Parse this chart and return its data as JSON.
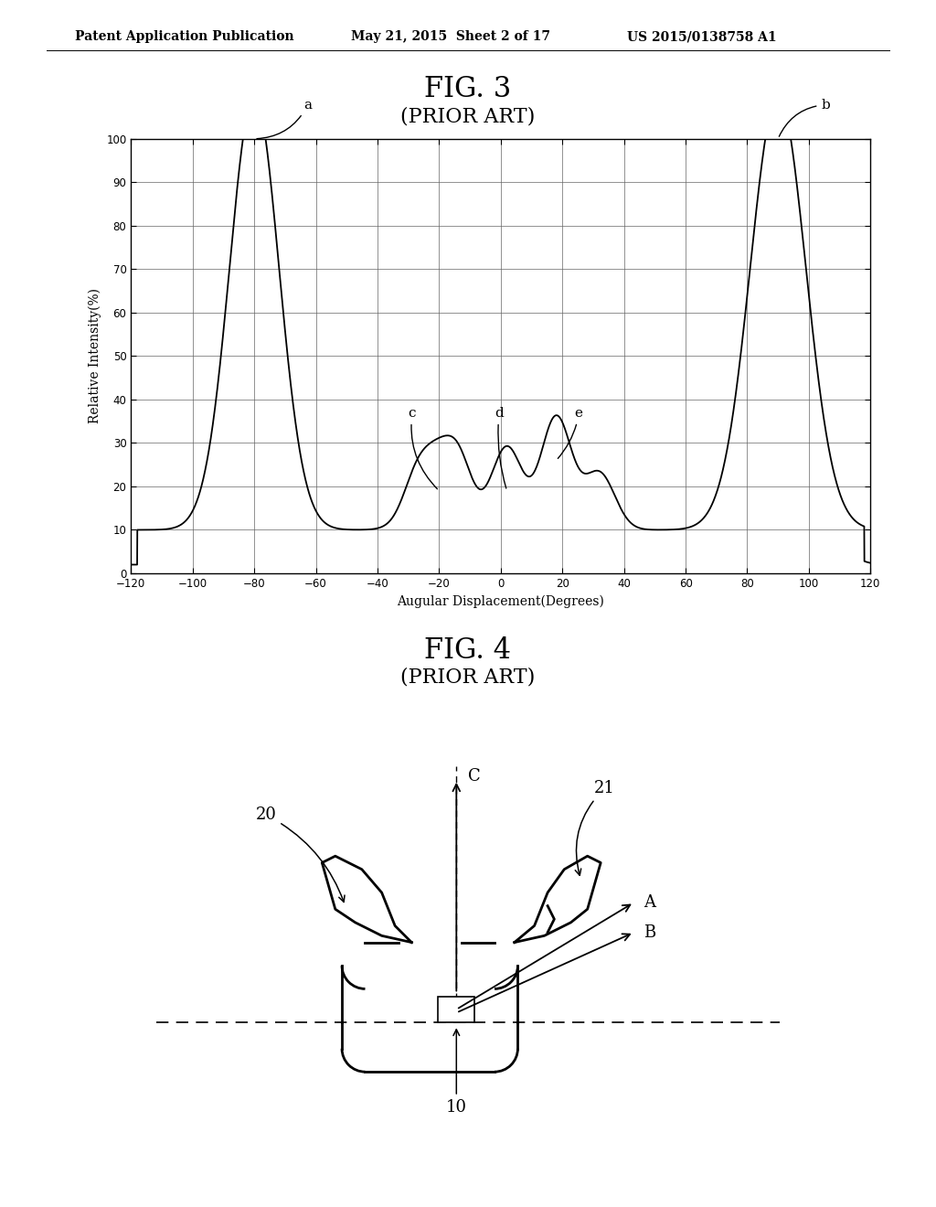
{
  "header_left": "Patent Application Publication",
  "header_mid": "May 21, 2015  Sheet 2 of 17",
  "header_right": "US 2015/0138758 A1",
  "fig3_title": "FIG. 3",
  "fig3_subtitle": "(PRIOR ART)",
  "fig3_xlabel": "Augular Displacement(Degrees)",
  "fig3_ylabel": "Relative Intensity(%)",
  "fig3_xlim": [
    -120,
    120
  ],
  "fig3_ylim": [
    0,
    100
  ],
  "fig3_xticks": [
    -120,
    -100,
    -80,
    -60,
    -40,
    -20,
    0,
    20,
    40,
    60,
    80,
    100,
    120
  ],
  "fig3_yticks": [
    0,
    10,
    20,
    30,
    40,
    50,
    60,
    70,
    80,
    90,
    100
  ],
  "fig4_title": "FIG. 4",
  "fig4_subtitle": "(PRIOR ART)",
  "background_color": "#ffffff",
  "line_color": "#000000"
}
